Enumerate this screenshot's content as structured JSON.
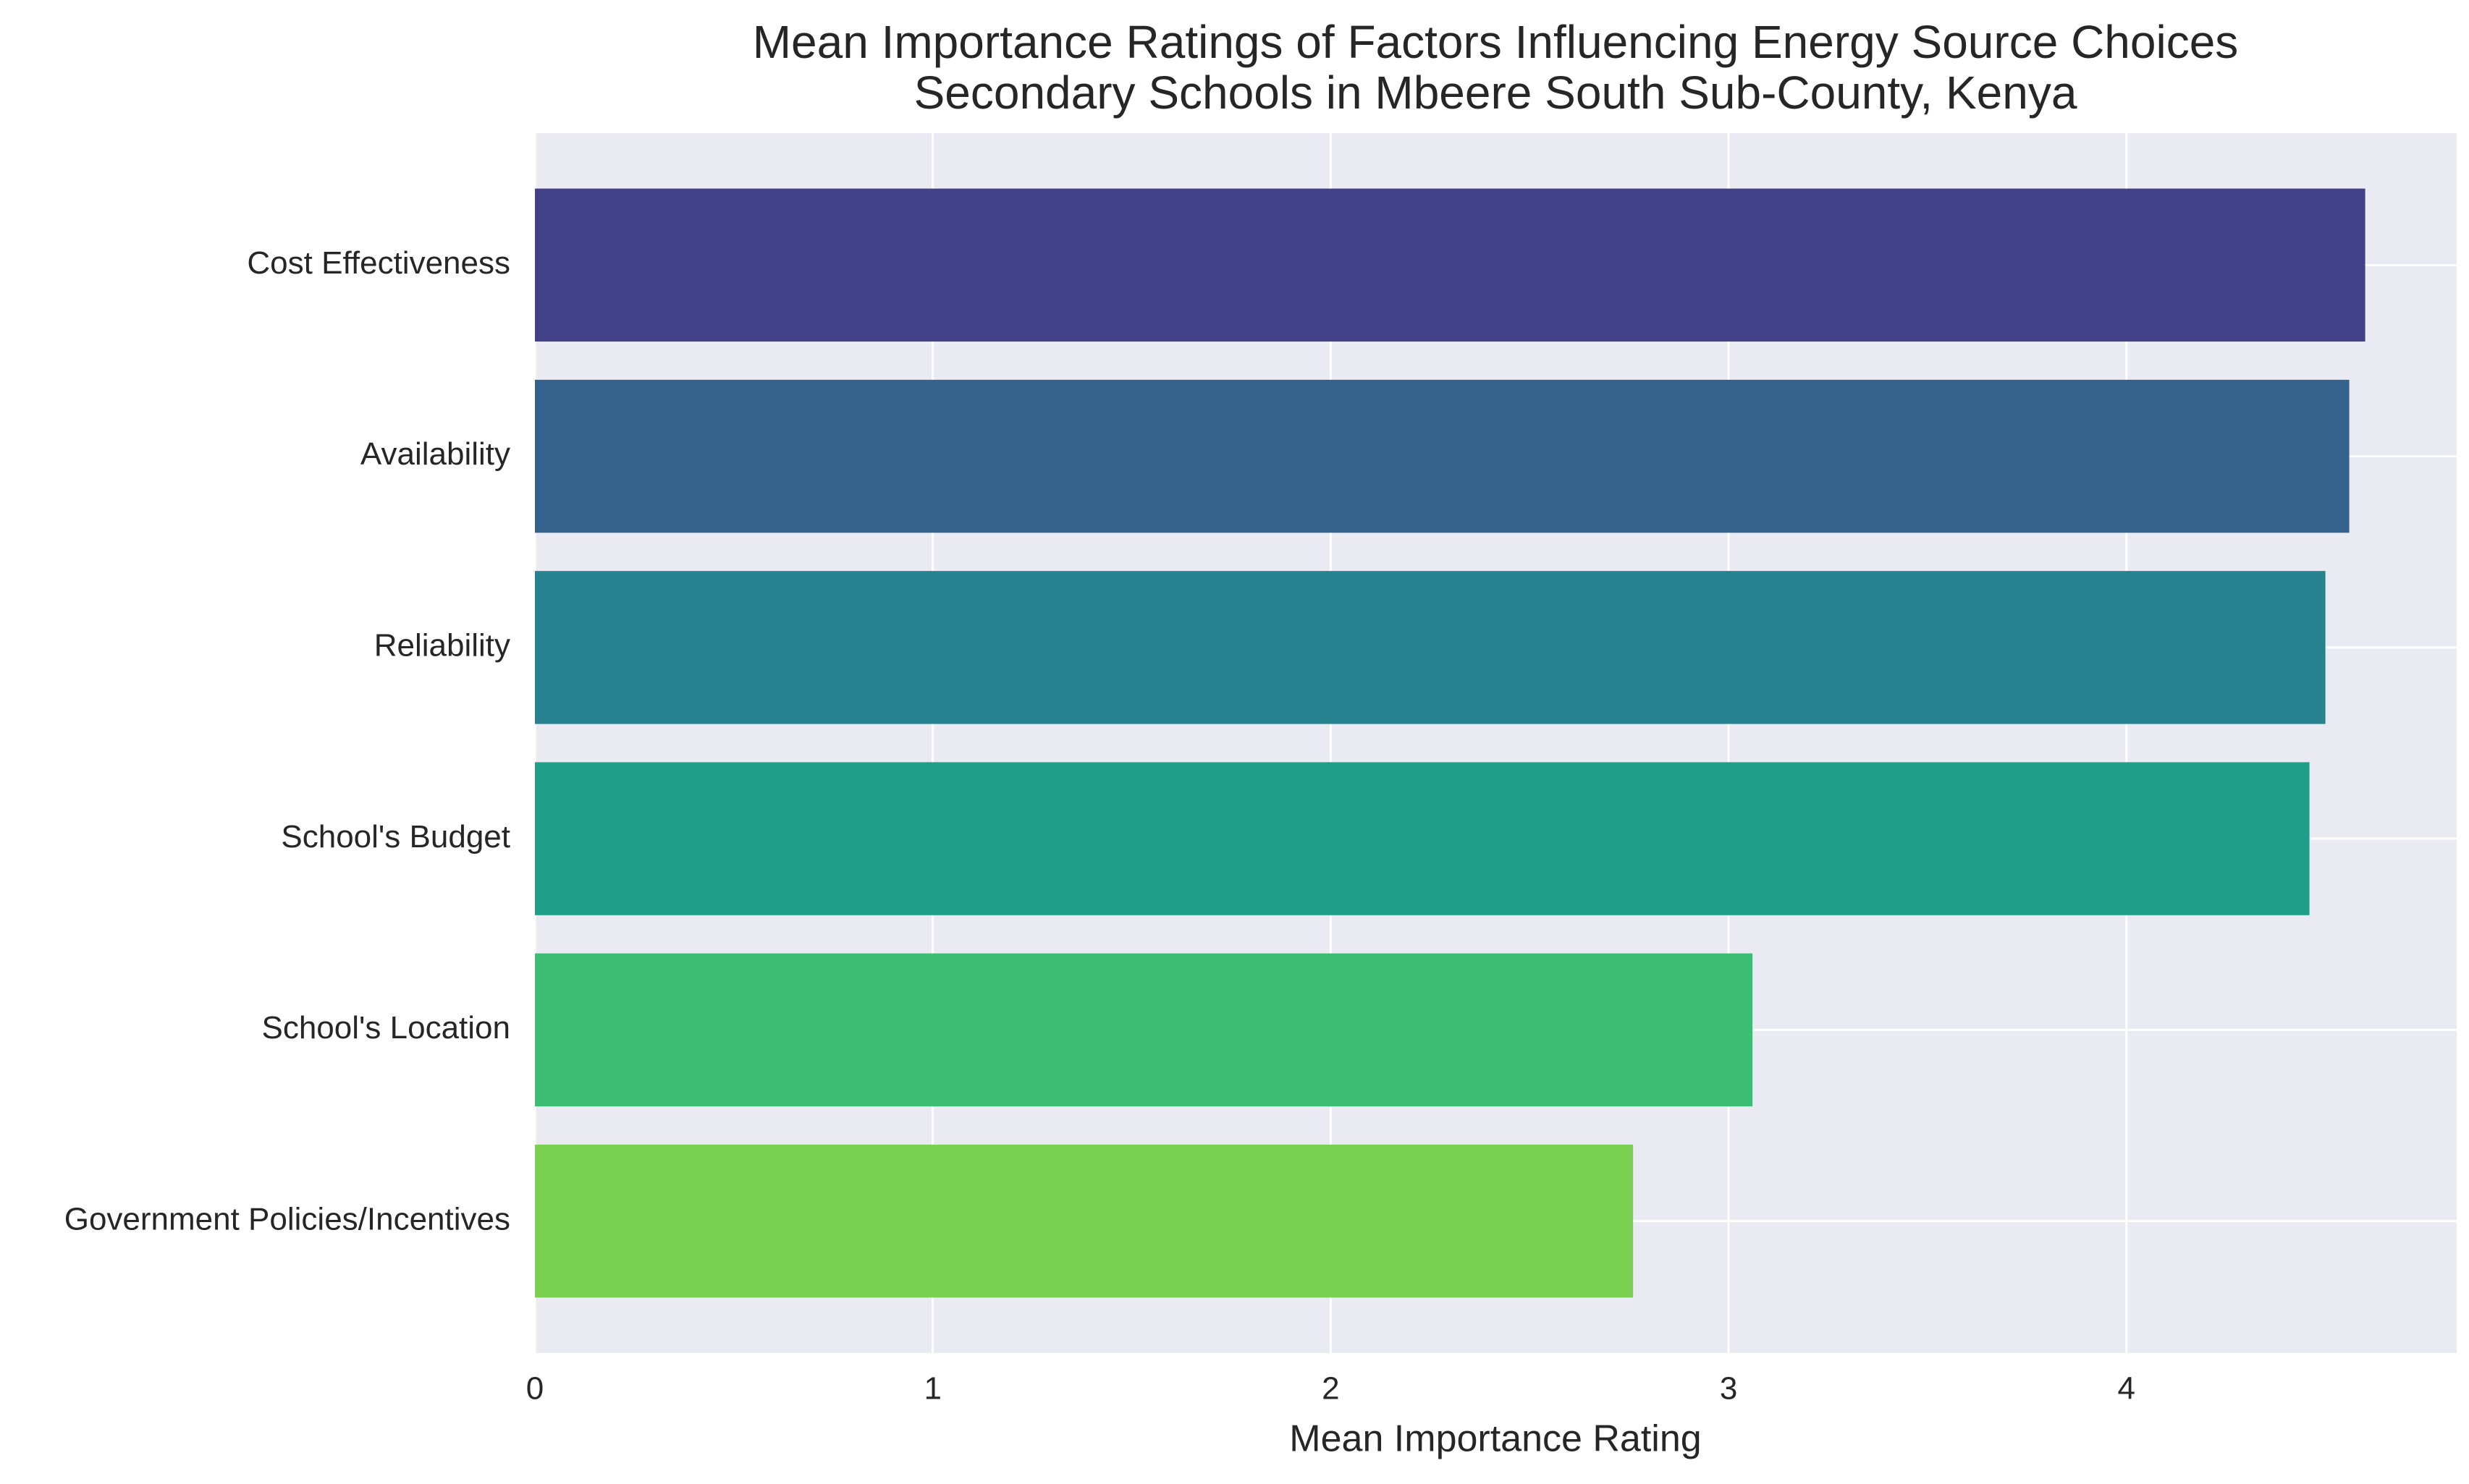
{
  "chart_data": {
    "type": "barh",
    "title": [
      "Mean Importance Ratings of Factors Influencing Energy Source Choices",
      "Secondary Schools in Mbeere South Sub-County, Kenya"
    ],
    "x_label": "Mean Importance Rating",
    "categories": [
      "Cost Effectiveness",
      "Availability",
      "Reliability",
      "School's Budget",
      "School's Location",
      "Government Policies/Incentives"
    ],
    "values": [
      4.6,
      4.56,
      4.5,
      4.46,
      3.06,
      2.76
    ],
    "colors": [
      "#424086",
      "#33638d",
      "#26828e",
      "#1f9e89",
      "#3dbc74",
      "#7ad151"
    ],
    "xlim": [
      0,
      4.83
    ],
    "xticks": [
      0,
      1,
      2,
      3,
      4
    ],
    "grid": true
  }
}
